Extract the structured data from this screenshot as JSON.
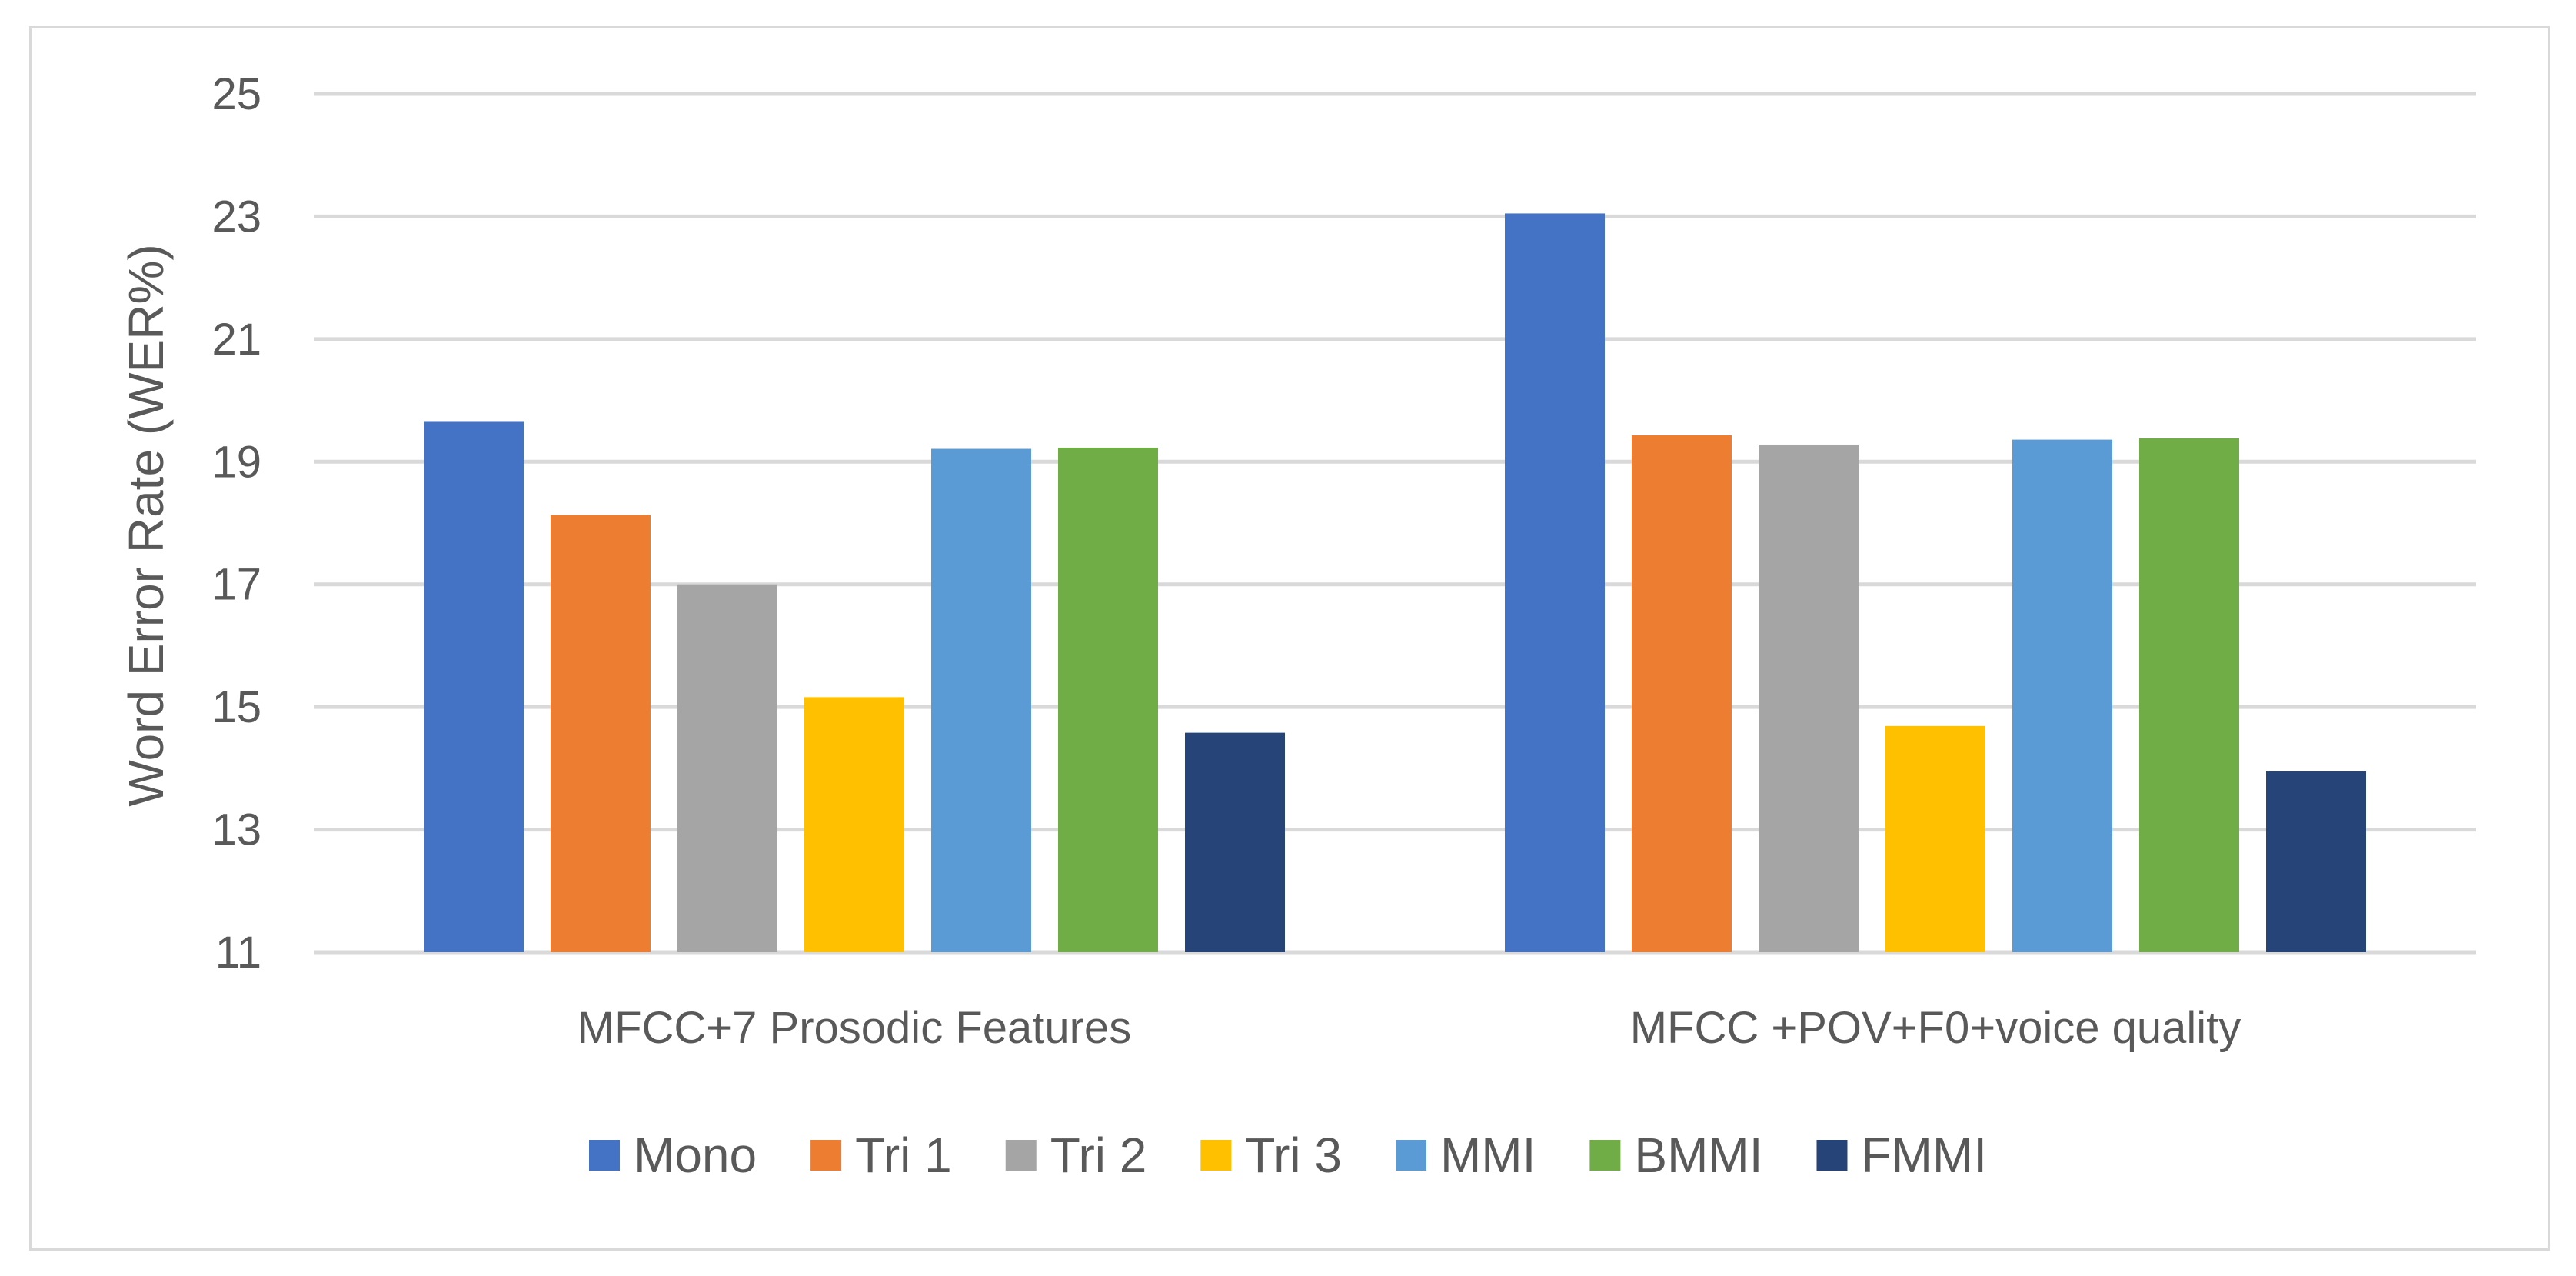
{
  "chart_data": {
    "type": "bar",
    "title": "",
    "xlabel": "",
    "ylabel": "Word Error Rate (WER%)",
    "ylim": [
      11,
      25
    ],
    "yticks": [
      11,
      13,
      15,
      17,
      19,
      21,
      23,
      25
    ],
    "grid": true,
    "legend_position": "bottom",
    "categories": [
      "MFCC+7 Prosodic Features",
      "MFCC +POV+F0+voice quality"
    ],
    "series": [
      {
        "name": "Mono",
        "color": "#4472C4",
        "values": [
          19.65,
          23.05
        ]
      },
      {
        "name": "Tri 1",
        "color": "#ED7D31",
        "values": [
          18.13,
          19.43
        ]
      },
      {
        "name": "Tri 2",
        "color": "#A5A5A5",
        "values": [
          17.0,
          19.28
        ]
      },
      {
        "name": "Tri 3",
        "color": "#FFC000",
        "values": [
          15.16,
          14.69
        ]
      },
      {
        "name": "MMI",
        "color": "#5B9BD5",
        "values": [
          19.21,
          19.36
        ]
      },
      {
        "name": "BMMI",
        "color": "#70AD47",
        "values": [
          19.23,
          19.38
        ]
      },
      {
        "name": "FMMI",
        "color": "#264478",
        "values": [
          14.58,
          13.95
        ]
      }
    ]
  }
}
